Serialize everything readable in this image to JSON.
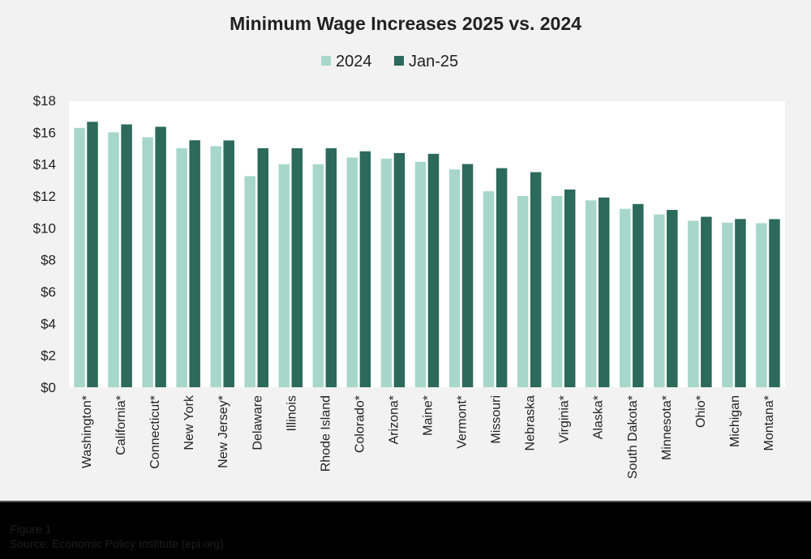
{
  "chart_data": {
    "type": "bar",
    "title": "Minimum Wage Increases 2025 vs. 2024",
    "xlabel": "",
    "ylabel": "",
    "ylim": [
      0,
      18
    ],
    "yticks": [
      "$0",
      "$2",
      "$4",
      "$6",
      "$8",
      "$10",
      "$12",
      "$14",
      "$16",
      "$18"
    ],
    "legend_position": "top-center",
    "grid": false,
    "categories": [
      "Washington*",
      "California*",
      "Connecticut*",
      "New York",
      "New Jersey*",
      "Delaware",
      "Illinois",
      "Rhode Island",
      "Colorado*",
      "Arizona*",
      "Maine*",
      "Vermont*",
      "Missouri",
      "Nebraska",
      "Virginia*",
      "Alaska*",
      "South Dakota*",
      "Minnesota*",
      "Ohio*",
      "Michigan",
      "Montana*"
    ],
    "series": [
      {
        "name": "2024",
        "color": "#a7d7cb",
        "values": [
          16.28,
          16.0,
          15.69,
          15.0,
          15.13,
          13.25,
          14.0,
          14.0,
          14.42,
          14.35,
          14.15,
          13.67,
          12.3,
          12.0,
          12.0,
          11.73,
          11.2,
          10.85,
          10.45,
          10.33,
          10.3
        ]
      },
      {
        "name": "Jan-25",
        "color": "#2c6a5b",
        "values": [
          16.66,
          16.5,
          16.35,
          15.5,
          15.49,
          15.0,
          15.0,
          15.0,
          14.81,
          14.7,
          14.65,
          14.01,
          13.75,
          13.5,
          12.41,
          11.91,
          11.5,
          11.13,
          10.7,
          10.56,
          10.55
        ]
      }
    ]
  },
  "footer": {
    "figure": "Figure 1",
    "source": "Source: Economic Policy Institute (epi.org)"
  }
}
